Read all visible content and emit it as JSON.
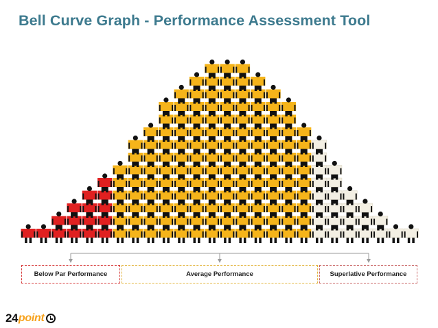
{
  "title": "Bell Curve Graph - Performance Assessment Tool",
  "chart_data": {
    "type": "bar",
    "columns": [
      1,
      1,
      2,
      3,
      4,
      5,
      6,
      8,
      9,
      11,
      12,
      13,
      14,
      14,
      14,
      13,
      12,
      11,
      9,
      8,
      6,
      4,
      3,
      2,
      1,
      1
    ],
    "segments": [
      {
        "name": "Below Par Performance",
        "from": 0,
        "to": 6,
        "color": "#e02020"
      },
      {
        "name": "Average Performance",
        "from": 6,
        "to": 19,
        "color": "#f5b41a"
      },
      {
        "name": "Superlative Performance",
        "from": 19,
        "to": 26,
        "color": "#f3efe3"
      }
    ]
  },
  "categories": {
    "below": "Below Par Performance",
    "average": "Average Performance",
    "superlative": "Superlative Performance"
  },
  "logo": {
    "number": "24",
    "word": "point"
  }
}
